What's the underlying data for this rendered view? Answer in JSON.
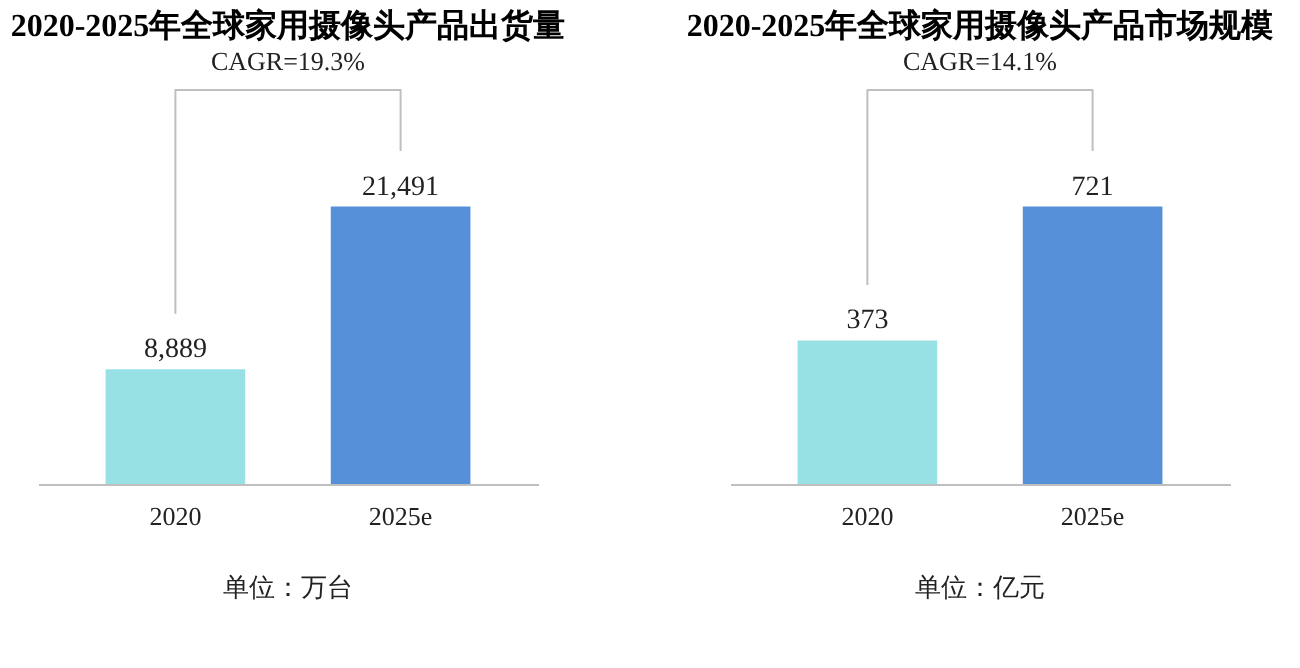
{
  "chart_data": [
    {
      "type": "bar",
      "title": "2020-2025年全球家用摄像头产品出货量",
      "categories": [
        "2020",
        "2025e"
      ],
      "values": [
        8889,
        21491
      ],
      "colors": [
        "#97e0e4",
        "#5590d9"
      ],
      "value_labels": [
        "8,889",
        "21,491"
      ],
      "tick_labels": "x",
      "grid": false,
      "annotations": [
        "CAGR=19.3%",
        "单位：万台"
      ]
    },
    {
      "type": "bar",
      "title": "2020-2025年全球家用摄像头产品市场规模",
      "categories": [
        "2020",
        "2025e"
      ],
      "values": [
        373,
        721
      ],
      "colors": [
        "#97e0e4",
        "#5590d9"
      ],
      "value_labels": [
        "373",
        "721"
      ],
      "tick_labels": "x",
      "grid": false,
      "annotations": [
        "CAGR=14.1%",
        "单位：亿元"
      ]
    }
  ]
}
